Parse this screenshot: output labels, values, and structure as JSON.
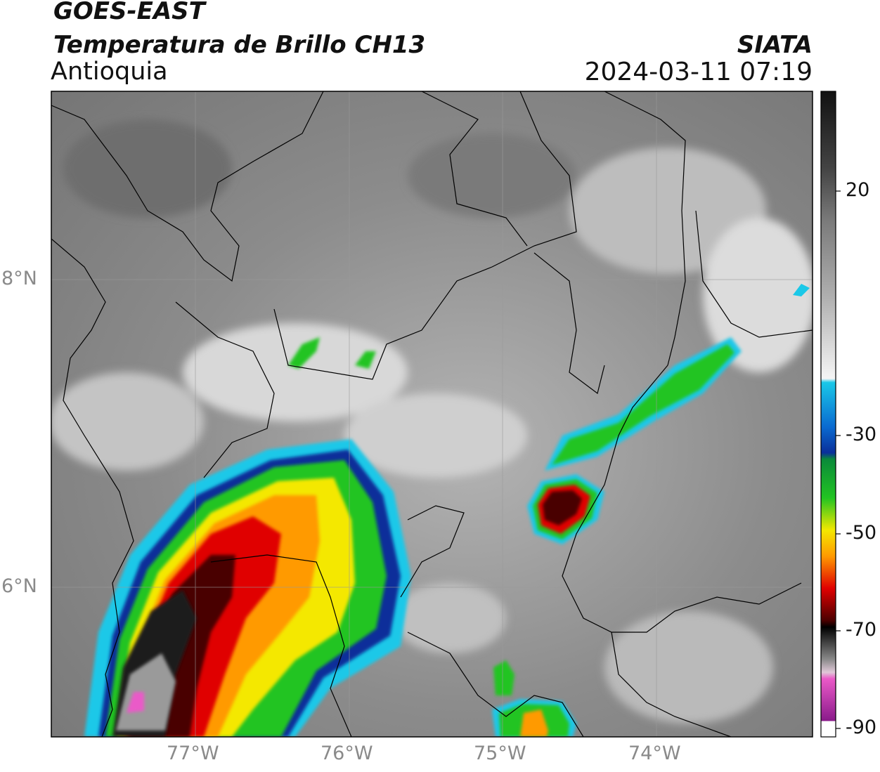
{
  "header": {
    "satellite": "GOES-EAST",
    "product": "Temperatura de Brillo CH13",
    "region": "Antioquia",
    "source": "SIATA",
    "datetime": "2024-03-11 07:19"
  },
  "axes": {
    "lon_labels": [
      "77°W",
      "76°W",
      "75°W",
      "74°W"
    ],
    "lat_labels": [
      "8°N",
      "6°N"
    ]
  },
  "colorbar": {
    "ticks": [
      "20",
      "-30",
      "-50",
      "-70",
      "-90"
    ],
    "stops": {
      "warm_black": "#111111",
      "gray_mid": "#7a7a7a",
      "white": "#f5f5f5",
      "cyan": "#1ac8e8",
      "blue": "#0a2f9a",
      "green": "#22c422",
      "yellow": "#f4e800",
      "orange": "#ff9a00",
      "red": "#e00000",
      "dark_red": "#4a0000",
      "black": "#000000",
      "pink": "#ea5ac8",
      "purple": "#8a1a8a"
    }
  }
}
